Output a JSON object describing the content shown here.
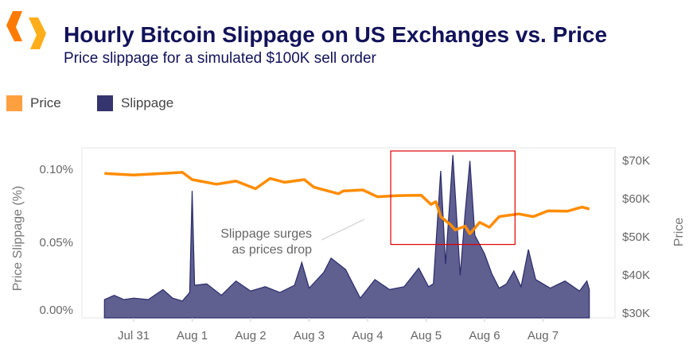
{
  "header": {
    "title": "Hourly Bitcoin Slippage on US Exchanges vs. Price",
    "subtitle": "Price slippage for a simulated $100K sell order",
    "logo": "orange-hexagon-brackets-logo"
  },
  "colors": {
    "price": "#ff8c00",
    "slippage_fill": "#5f5f90",
    "slippage_line": "#2b2b6b",
    "legend_price": "#ffa040",
    "legend_slippage": "#34346e",
    "highlight": "#e00000",
    "title": "#12125a"
  },
  "chart_data": {
    "type": "line+area",
    "title": "Hourly Bitcoin Slippage on US Exchanges vs. Price",
    "subtitle": "Price slippage for a simulated $100K sell order",
    "legend": {
      "placement": "top-left",
      "entries": [
        "Price",
        "Slippage"
      ]
    },
    "xlabel": "",
    "x_ticks": [
      "Jul 31",
      "Aug 1",
      "Aug 2",
      "Aug 3",
      "Aug 4",
      "Aug 5",
      "Aug 6",
      "Aug 7"
    ],
    "y_left": {
      "label": "Price Slippage (%)",
      "ticks": [
        "0.00%",
        "0.05%",
        "0.10%"
      ],
      "range": [
        0,
        0.12
      ]
    },
    "y_right": {
      "label": "Price",
      "ticks": [
        "$30K",
        "$40K",
        "$50K",
        "$60K",
        "$70K"
      ],
      "range": [
        28,
        74
      ]
    },
    "grid": false,
    "series": [
      {
        "name": "Slippage",
        "axis": "left",
        "unit": "%",
        "type": "area",
        "points": [
          [
            "Jul 30 12:00",
            0.01
          ],
          [
            "Jul 30 16:00",
            0.013
          ],
          [
            "Jul 30 20:00",
            0.01
          ],
          [
            "Jul 31 00:00",
            0.011
          ],
          [
            "Jul 31 06:00",
            0.01
          ],
          [
            "Jul 31 12:00",
            0.017
          ],
          [
            "Jul 31 16:00",
            0.011
          ],
          [
            "Jul 31 20:00",
            0.009
          ],
          [
            "Jul 31 23:00",
            0.015
          ],
          [
            "Aug 1 00:00",
            0.086
          ],
          [
            "Aug 1 01:00",
            0.02
          ],
          [
            "Aug 1 06:00",
            0.021
          ],
          [
            "Aug 1 12:00",
            0.013
          ],
          [
            "Aug 1 18:00",
            0.023
          ],
          [
            "Aug 2 00:00",
            0.016
          ],
          [
            "Aug 2 06:00",
            0.019
          ],
          [
            "Aug 2 12:00",
            0.015
          ],
          [
            "Aug 2 18:00",
            0.02
          ],
          [
            "Aug 2 21:00",
            0.036
          ],
          [
            "Aug 3 00:00",
            0.018
          ],
          [
            "Aug 3 06:00",
            0.029
          ],
          [
            "Aug 3 09:00",
            0.039
          ],
          [
            "Aug 3 15:00",
            0.031
          ],
          [
            "Aug 3 21:00",
            0.011
          ],
          [
            "Aug 4 03:00",
            0.024
          ],
          [
            "Aug 4 09:00",
            0.017
          ],
          [
            "Aug 4 15:00",
            0.019
          ],
          [
            "Aug 4 21:00",
            0.032
          ],
          [
            "Aug 5 01:00",
            0.019
          ],
          [
            "Aug 5 03:00",
            0.021
          ],
          [
            "Aug 5 06:00",
            0.1
          ],
          [
            "Aug 5 08:00",
            0.035
          ],
          [
            "Aug 5 11:00",
            0.111
          ],
          [
            "Aug 5 14:00",
            0.027
          ],
          [
            "Aug 5 16:00",
            0.07
          ],
          [
            "Aug 5 18:00",
            0.107
          ],
          [
            "Aug 5 20:00",
            0.055
          ],
          [
            "Aug 6 00:00",
            0.042
          ],
          [
            "Aug 6 03:00",
            0.028
          ],
          [
            "Aug 6 06:00",
            0.018
          ],
          [
            "Aug 6 09:00",
            0.021
          ],
          [
            "Aug 6 12:00",
            0.03
          ],
          [
            "Aug 6 15:00",
            0.019
          ],
          [
            "Aug 6 18:00",
            0.045
          ],
          [
            "Aug 6 21:00",
            0.024
          ],
          [
            "Aug 7 03:00",
            0.018
          ],
          [
            "Aug 7 09:00",
            0.023
          ],
          [
            "Aug 7 15:00",
            0.016
          ],
          [
            "Aug 7 18:00",
            0.023
          ],
          [
            "Aug 7 19:00",
            0.017
          ]
        ]
      },
      {
        "name": "Price",
        "axis": "right",
        "unit": "$K",
        "type": "line",
        "points": [
          [
            "Jul 30 12:00",
            66.6
          ],
          [
            "Jul 31 00:00",
            66.2
          ],
          [
            "Jul 31 12:00",
            66.6
          ],
          [
            "Jul 31 20:00",
            66.9
          ],
          [
            "Aug 1 00:00",
            65.0
          ],
          [
            "Aug 1 10:00",
            63.8
          ],
          [
            "Aug 1 18:00",
            64.6
          ],
          [
            "Aug 2 02:00",
            62.6
          ],
          [
            "Aug 2 08:00",
            65.3
          ],
          [
            "Aug 2 14:00",
            64.3
          ],
          [
            "Aug 2 22:00",
            65.0
          ],
          [
            "Aug 3 02:00",
            63.0
          ],
          [
            "Aug 3 12:00",
            61.3
          ],
          [
            "Aug 3 14:00",
            62.0
          ],
          [
            "Aug 3 22:00",
            62.3
          ],
          [
            "Aug 4 04:00",
            60.5
          ],
          [
            "Aug 4 12:00",
            60.8
          ],
          [
            "Aug 4 22:00",
            60.9
          ],
          [
            "Aug 5 02:00",
            58.5
          ],
          [
            "Aug 5 04:00",
            59.2
          ],
          [
            "Aug 5 06:00",
            55.3
          ],
          [
            "Aug 5 10:00",
            53.2
          ],
          [
            "Aug 5 12:00",
            51.8
          ],
          [
            "Aug 5 16:00",
            52.8
          ],
          [
            "Aug 5 18:00",
            50.8
          ],
          [
            "Aug 5 22:00",
            53.8
          ],
          [
            "Aug 6 02:00",
            52.5
          ],
          [
            "Aug 6 06:00",
            55.3
          ],
          [
            "Aug 6 14:00",
            56.0
          ],
          [
            "Aug 6 20:00",
            55.3
          ],
          [
            "Aug 7 02:00",
            56.8
          ],
          [
            "Aug 7 10:00",
            56.7
          ],
          [
            "Aug 7 16:00",
            57.8
          ],
          [
            "Aug 7 19:00",
            57.3
          ]
        ]
      }
    ],
    "annotations": [
      {
        "text_lines": [
          "Slippage surges",
          "as prices drop"
        ]
      },
      {
        "type": "highlight-box",
        "x_range": [
          "Aug 4 09:30",
          "Aug 6 12:30"
        ],
        "price_range": [
          48,
          72.5
        ]
      }
    ]
  }
}
